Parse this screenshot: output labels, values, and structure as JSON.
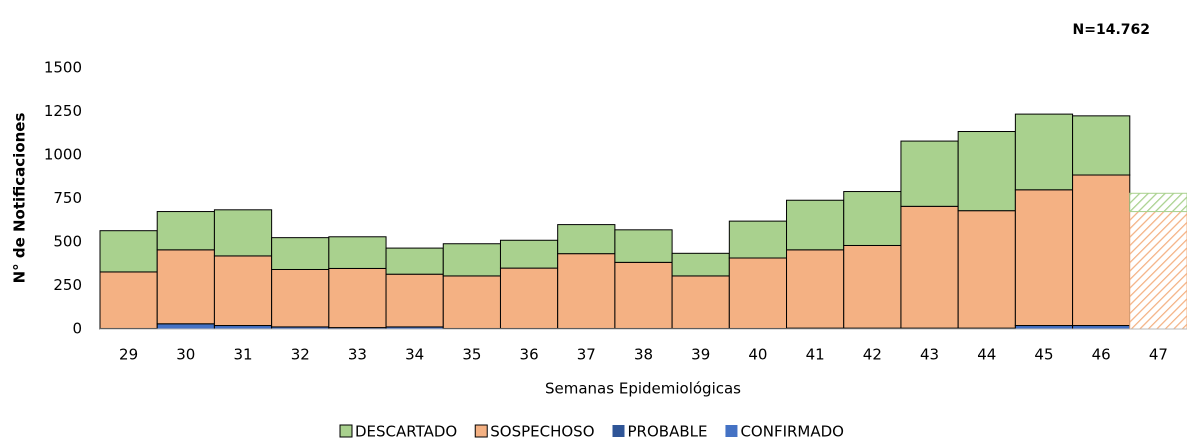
{
  "chart_data": {
    "type": "stacked_bar",
    "annotation": "N=14.762",
    "x_label": "Semanas Epidemiológicas",
    "y_label": "N° de Notificaciones",
    "categories": [
      "29",
      "30",
      "31",
      "32",
      "33",
      "34",
      "35",
      "36",
      "37",
      "38",
      "39",
      "40",
      "41",
      "42",
      "43",
      "44",
      "45",
      "46",
      "47"
    ],
    "series": [
      {
        "name": "CONFIRMADO",
        "color": "#4472c4",
        "values": [
          3,
          30,
          20,
          12,
          8,
          12,
          3,
          3,
          3,
          3,
          3,
          3,
          5,
          5,
          5,
          5,
          20,
          20,
          0
        ]
      },
      {
        "name": "PROBABLE",
        "color": "#2f5597",
        "values": [
          0,
          0,
          0,
          0,
          0,
          0,
          0,
          0,
          0,
          0,
          0,
          0,
          0,
          0,
          0,
          0,
          0,
          0,
          0
        ]
      },
      {
        "name": "SOSPECHOSO",
        "color": "#f4b183",
        "values": [
          325,
          425,
          400,
          330,
          340,
          303,
          302,
          347,
          430,
          380,
          302,
          405,
          450,
          475,
          700,
          675,
          780,
          865,
          675
        ]
      },
      {
        "name": "DESCARTADO",
        "color": "#a9d18e",
        "values": [
          237,
          220,
          265,
          183,
          182,
          150,
          185,
          160,
          167,
          187,
          130,
          212,
          285,
          310,
          375,
          455,
          435,
          340,
          105
        ]
      }
    ],
    "hatch_last": true,
    "ylim": [
      0,
      1500
    ],
    "yticks": [
      0,
      250,
      500,
      750,
      1000,
      1250,
      1500
    ]
  }
}
